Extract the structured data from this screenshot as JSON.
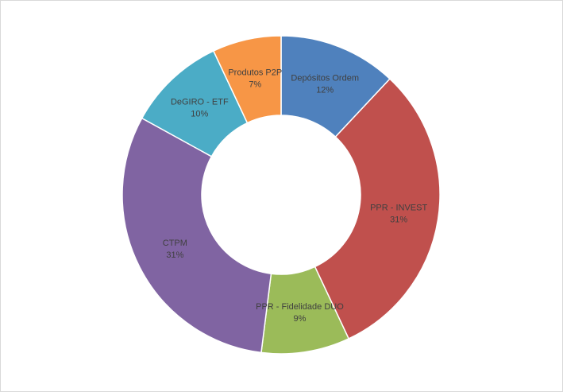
{
  "chart_data": {
    "type": "donut",
    "categories": [
      "Depósitos Ordem",
      "PPR - INVEST",
      "PPR - Fidelidade DUO",
      "CTPM",
      "DeGIRO - ETF",
      "Produtos P2P"
    ],
    "values": [
      12,
      31,
      9,
      31,
      10,
      7
    ],
    "value_labels": [
      "12%",
      "31%",
      "9%",
      "31%",
      "10%",
      "7%"
    ],
    "colors": [
      "#4f81bd",
      "#c0504d",
      "#9bbb59",
      "#8064a2",
      "#4bacc6",
      "#f79646"
    ]
  }
}
